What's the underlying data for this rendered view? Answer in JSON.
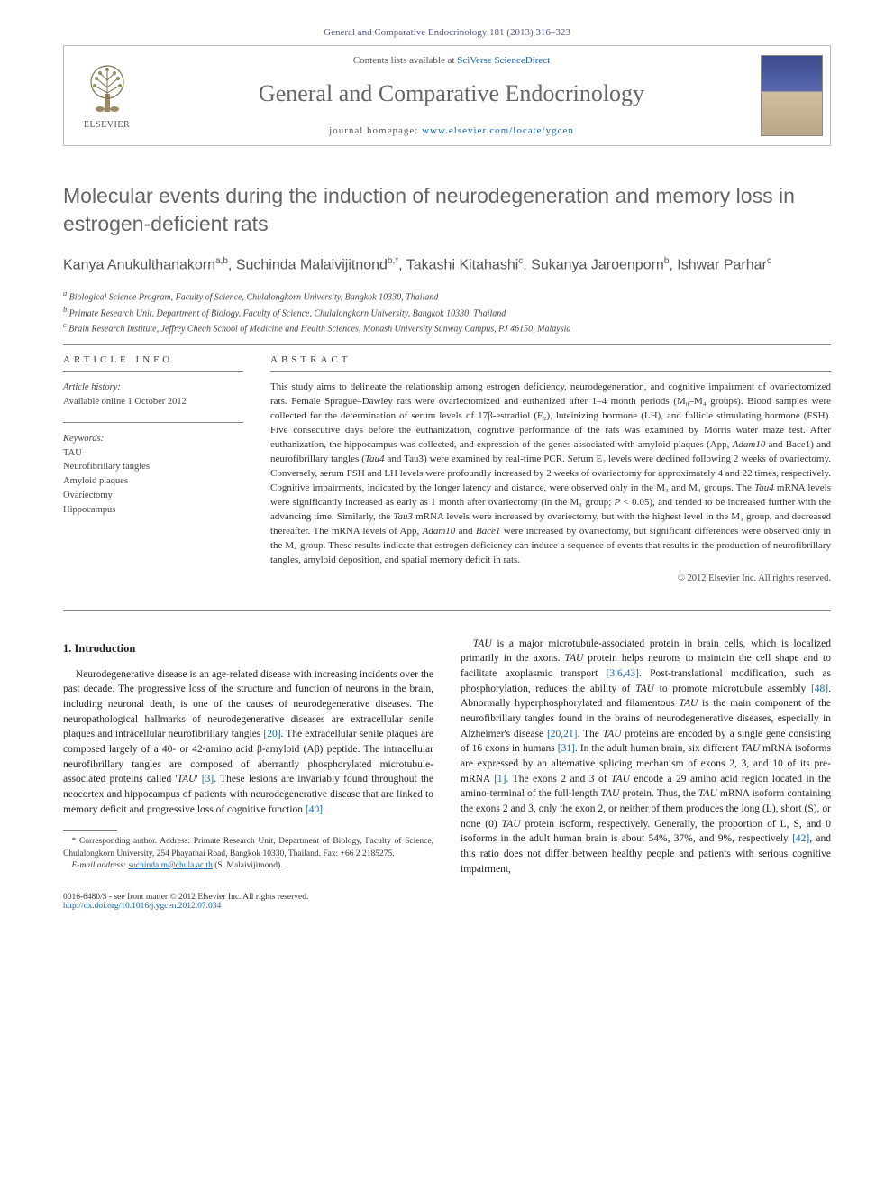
{
  "journal_ref": "General and Comparative Endocrinology 181 (2013) 316–323",
  "header": {
    "contents_prefix": "Contents lists available at ",
    "contents_link": "SciVerse ScienceDirect",
    "journal_title": "General and Comparative Endocrinology",
    "homepage_prefix": "journal homepage: ",
    "homepage_url": "www.elsevier.com/locate/ygcen",
    "publisher": "ELSEVIER"
  },
  "article": {
    "title": "Molecular events during the induction of neurodegeneration and memory loss in estrogen-deficient rats",
    "authors_html": "Kanya Anukulthanakorn<sup>a,b</sup>, Suchinda Malaivijitnond<sup>b,*</sup>, Takashi Kitahashi<sup>c</sup>, Sukanya Jaroenporn<sup>b</sup>, Ishwar Parhar<sup>c</sup>",
    "affiliations": [
      "Biological Science Program, Faculty of Science, Chulalongkorn University, Bangkok 10330, Thailand",
      "Primate Research Unit, Department of Biology, Faculty of Science, Chulalongkorn University, Bangkok 10330, Thailand",
      "Brain Research Institute, Jeffrey Cheah School of Medicine and Health Sciences, Monash University Sunway Campus, PJ 46150, Malaysia"
    ],
    "aff_supers": [
      "a",
      "b",
      "c"
    ]
  },
  "info": {
    "label": "ARTICLE INFO",
    "history_label": "Article history:",
    "history_text": "Available online 1 October 2012",
    "keywords_label": "Keywords:",
    "keywords": [
      "TAU",
      "Neurofibrillary tangles",
      "Amyloid plaques",
      "Ovariectomy",
      "Hippocampus"
    ]
  },
  "abstract": {
    "label": "ABSTRACT",
    "text": "This study aims to delineate the relationship among estrogen deficiency, neurodegeneration, and cognitive impairment of ovariectomized rats. Female Sprague–Dawley rats were ovariectomized and euthanized after 1–4 month periods (M₀–M₄ groups). Blood samples were collected for the determination of serum levels of 17β-estradiol (E₂), luteinizing hormone (LH), and follicle stimulating hormone (FSH). Five consecutive days before the euthanization, cognitive performance of the rats was examined by Morris water maze test. After euthanization, the hippocampus was collected, and expression of the genes associated with amyloid plaques (App, Adam10 and Bace1) and neurofibrillary tangles (Tau4 and Tau3) were examined by real-time PCR. Serum E₂ levels were declined following 2 weeks of ovariectomy. Conversely, serum FSH and LH levels were profoundly increased by 2 weeks of ovariectomy for approximately 4 and 22 times, respectively. Cognitive impairments, indicated by the longer latency and distance, were observed only in the M₃ and M₄ groups. The Tau4 mRNA levels were significantly increased as early as 1 month after ovariectomy (in the M₁ group; P < 0.05), and tended to be increased further with the advancing time. Similarly, the Tau3 mRNA levels were increased by ovariectomy, but with the highest level in the M₁ group, and decreased thereafter. The mRNA levels of App, Adam10 and Bace1 were increased by ovariectomy, but significant differences were observed only in the M₄ group. These results indicate that estrogen deficiency can induce a sequence of events that results in the production of neurofibrillary tangles, amyloid deposition, and spatial memory deficit in rats.",
    "copyright": "© 2012 Elsevier Inc. All rights reserved."
  },
  "body": {
    "intro_heading": "1. Introduction",
    "col1": "Neurodegenerative disease is an age-related disease with increasing incidents over the past decade. The progressive loss of the structure and function of neurons in the brain, including neuronal death, is one of the causes of neurodegenerative diseases. The neuropathological hallmarks of neurodegenerative diseases are extracellular senile plaques and intracellular neurofibrillary tangles [20]. The extracellular senile plaques are composed largely of a 40- or 42-amino acid β-amyloid (Aβ) peptide. The intracellular neurofibrillary tangles are composed of aberrantly phosphorylated microtubule-associated proteins called 'TAU' [3]. These lesions are invariably found throughout the neocortex and hippocampus of patients with neurodegenerative disease that are linked to memory deficit and progressive loss of cognitive function [40].",
    "col2": "TAU is a major microtubule-associated protein in brain cells, which is localized primarily in the axons. TAU protein helps neurons to maintain the cell shape and to facilitate axoplasmic transport [3,6,43]. Post-translational modification, such as phosphorylation, reduces the ability of TAU to promote microtubule assembly [48]. Abnormally hyperphosphorylated and filamentous TAU is the main component of the neurofibrillary tangles found in the brains of neurodegenerative diseases, especially in Alzheimer's disease [20,21]. The TAU proteins are encoded by a single gene consisting of 16 exons in humans [31]. In the adult human brain, six different TAU mRNA isoforms are expressed by an alternative splicing mechanism of exons 2, 3, and 10 of its pre-mRNA [1]. The exons 2 and 3 of TAU encode a 29 amino acid region located in the amino-terminal of the full-length TAU protein. Thus, the TAU mRNA isoform containing the exons 2 and 3, only the exon 2, or neither of them produces the long (L), short (S), or none (0) TAU protein isoform, respectively. Generally, the proportion of L, S, and 0 isoforms in the adult human brain is about 54%, 37%, and 9%, respectively [42], and this ratio does not differ between healthy people and patients with serious cognitive impairment,"
  },
  "footnotes": {
    "corr_label": "* Corresponding author. Address: Primate Research Unit, Department of Biology, Faculty of Science, Chulalongkorn University, 254 Phayathai Road, Bangkok 10330, Thailand. Fax: +66 2 2185275.",
    "email_label": "E-mail address:",
    "email": "suchinda.m@chula.ac.th",
    "email_suffix": "(S. Malaivijitnond)."
  },
  "footer": {
    "left_line1": "0016-6480/$ - see front matter © 2012 Elsevier Inc. All rights reserved.",
    "left_line2_prefix": "http://dx.doi.org/",
    "doi": "10.1016/j.ygcen.2012.07.034"
  },
  "colors": {
    "link": "#1066b8",
    "heading": "#636360",
    "muted": "#555"
  }
}
